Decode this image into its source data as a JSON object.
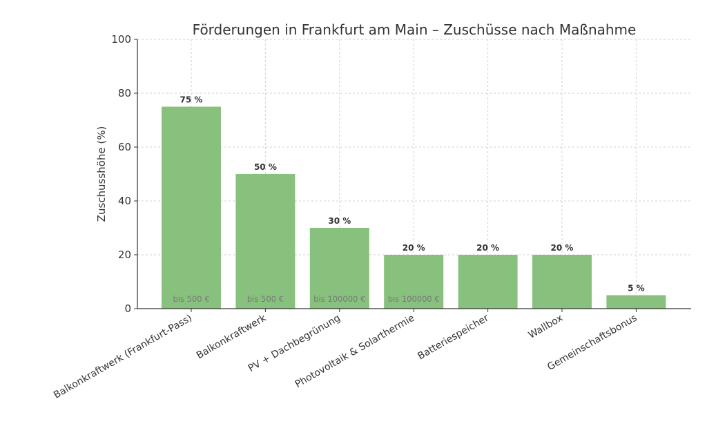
{
  "chart_data": {
    "type": "bar",
    "title": "Förderungen in Frankfurt am Main – Zuschüsse nach Maßnahme",
    "xlabel": "",
    "ylabel": "Zuschusshöhe (%)",
    "ylim": [
      0,
      100
    ],
    "yticks": [
      "0",
      "20",
      "40",
      "60",
      "80",
      "100"
    ],
    "grid": true,
    "categories": [
      "Balkonkraftwerk (Frankfurt-Pass)",
      "Balkonkraftwerk",
      "PV + Dachbegrünung",
      "Photovoltaik & Solarthermie",
      "Batteriespeicher",
      "Wallbox",
      "Gemeinschaftsbonus"
    ],
    "values": [
      75,
      50,
      30,
      20,
      20,
      20,
      5
    ],
    "value_labels": [
      "75 %",
      "50 %",
      "30 %",
      "20 %",
      "20 %",
      "20 %",
      "5 %"
    ],
    "caps": [
      "bis 500 €",
      "bis 500 €",
      "bis 100000 €",
      "bis 100000 €",
      "",
      "",
      ""
    ],
    "colors": {
      "bar": "#88c17e",
      "grid": "#d0d0d0",
      "axis": "#333333"
    }
  }
}
